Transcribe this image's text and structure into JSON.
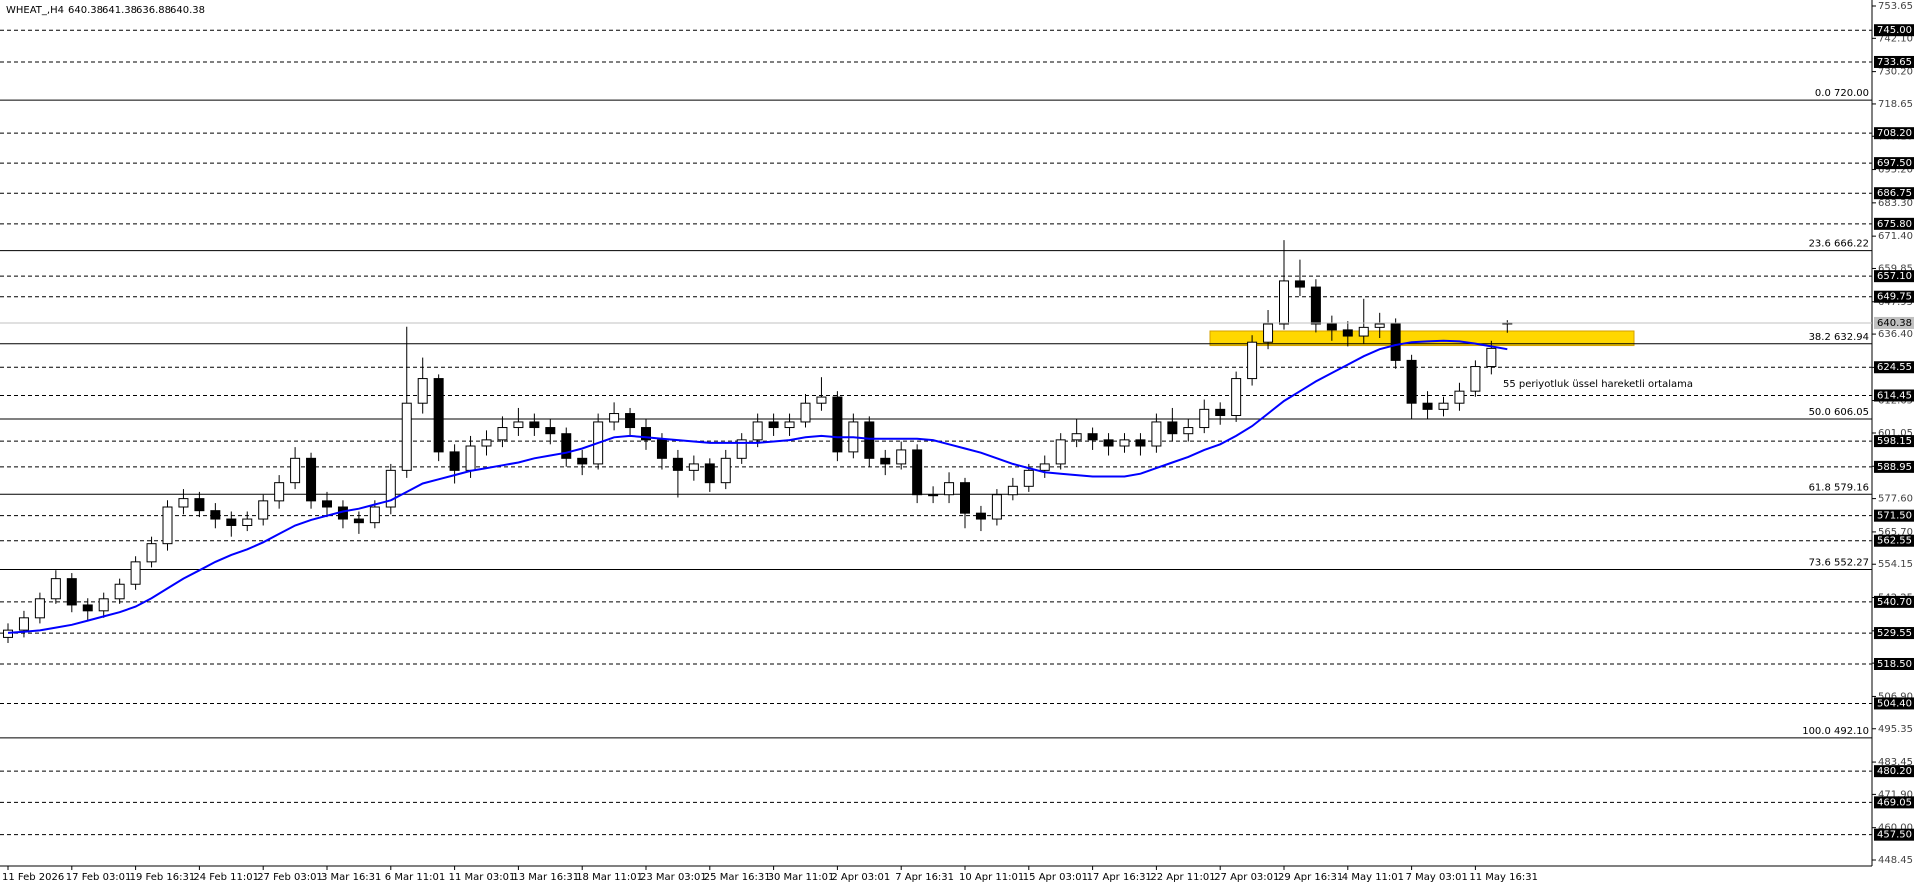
{
  "chart_data": {
    "type": "candlestick",
    "symbol": "WHEAT_,H4",
    "categories": [
      "11 Feb 2026",
      null,
      null,
      null,
      "17 Feb 03:01",
      null,
      null,
      null,
      "19 Feb 16:31",
      null,
      null,
      null,
      "24 Feb 11:01",
      null,
      null,
      null,
      "27 Feb 03:01",
      null,
      null,
      null,
      "3 Mar 16:31",
      null,
      null,
      null,
      "6 Mar 11:01",
      null,
      null,
      null,
      "11 Mar 03:01",
      null,
      null,
      null,
      "13 Mar 16:31",
      null,
      null,
      null,
      "18 Mar 11:01",
      null,
      null,
      null,
      "23 Mar 03:01",
      null,
      null,
      null,
      "25 Mar 16:31",
      null,
      null,
      null,
      "30 Mar 11:01",
      null,
      null,
      null,
      "2 Apr 03:01",
      null,
      null,
      null,
      "7 Apr 16:31",
      null,
      null,
      null,
      "10 Apr 11:01",
      null,
      null,
      null,
      "15 Apr 03:01",
      null,
      null,
      null,
      "17 Apr 16:31",
      null,
      null,
      null,
      "22 Apr 11:01",
      null,
      null,
      null,
      "27 Apr 03:01",
      null,
      null,
      null,
      "29 Apr 16:31",
      null,
      null,
      null,
      "4 May 11:01",
      null,
      null,
      null,
      "7 May 03:01",
      null,
      null,
      null,
      "11 May 16:31",
      null,
      null
    ],
    "open": [
      528,
      530.6,
      535,
      541.8,
      549,
      539.6,
      537.5,
      541.8,
      547,
      555,
      561.5,
      574.6,
      577.6,
      573.3,
      570.3,
      568,
      570.3,
      576.8,
      583.3,
      592,
      576.8,
      574.6,
      570.3,
      569,
      574.6,
      587.7,
      611.7,
      620.5,
      594.3,
      587.7,
      596.4,
      598.6,
      603,
      605,
      603,
      600.8,
      592,
      590,
      605,
      608,
      603,
      598.6,
      592,
      587.7,
      590,
      583.3,
      592,
      598.6,
      605,
      603,
      605,
      611.7,
      613.9,
      594.3,
      605,
      592,
      590,
      595,
      579,
      579,
      583.3,
      572.4,
      570.3,
      579,
      582,
      587.7,
      590,
      598.6,
      600.8,
      598.6,
      596.4,
      598.6,
      596.4,
      605,
      600.8,
      603,
      609.5,
      607.3,
      620.5,
      633.5,
      640,
      655.4,
      653.2,
      640,
      637.9,
      635.7,
      638.8,
      640,
      627,
      611.7,
      609.5,
      611.7,
      616,
      624.8,
      640.38
    ],
    "high": [
      533,
      537.5,
      544,
      552,
      551,
      542,
      544,
      549,
      557,
      564,
      577,
      581,
      580,
      576,
      573,
      573,
      579,
      586,
      596,
      594,
      580,
      577,
      573,
      577,
      590,
      639,
      628,
      622,
      597,
      600,
      602,
      607,
      610,
      608,
      606,
      603,
      595,
      608,
      612,
      610,
      606,
      601,
      595,
      593,
      592,
      595,
      601,
      608,
      608,
      608,
      615,
      621,
      616,
      608,
      607,
      595,
      598,
      597,
      582,
      587,
      585,
      575,
      581,
      585,
      590,
      593,
      601,
      606,
      603,
      601,
      601,
      601,
      608,
      610,
      606,
      613,
      612,
      623,
      636,
      645,
      670,
      663,
      656,
      643,
      641,
      649,
      644,
      642,
      629,
      616,
      614,
      619,
      627,
      634,
      641.38
    ],
    "low": [
      526,
      528,
      533,
      540,
      537,
      534,
      535,
      540,
      545,
      553,
      559,
      572,
      571,
      567,
      564,
      566,
      568,
      574,
      581,
      574,
      571,
      567,
      565,
      567,
      572,
      585,
      608,
      591,
      583,
      585,
      593,
      596,
      600,
      600,
      597,
      589,
      586,
      588,
      602,
      600,
      595,
      588,
      578,
      584,
      580,
      581,
      590,
      596,
      600,
      600,
      603,
      609,
      591,
      592,
      589,
      586,
      588,
      576,
      576,
      576,
      567,
      566,
      568,
      577,
      580,
      585,
      588,
      596,
      595,
      593,
      594,
      593,
      594,
      598,
      598,
      601,
      604,
      605,
      618,
      631,
      638,
      650,
      637,
      634,
      632,
      633,
      635,
      624,
      606,
      606,
      607,
      609,
      614,
      622,
      636.88
    ],
    "close": [
      530.6,
      535,
      541.8,
      549,
      539.6,
      537.5,
      541.8,
      547,
      555,
      561.5,
      574.6,
      577.6,
      573.3,
      570.3,
      568,
      570.3,
      576.8,
      583.3,
      592,
      576.8,
      574.6,
      570.3,
      569,
      574.6,
      587.7,
      611.7,
      620.5,
      594.3,
      587.7,
      596.4,
      598.6,
      603,
      605,
      603,
      600.8,
      592,
      590,
      605,
      608,
      603,
      598.6,
      592,
      587.7,
      590,
      583.3,
      592,
      598.6,
      605,
      603,
      605,
      611.7,
      613.9,
      594.3,
      605,
      592,
      590,
      595,
      579,
      579,
      583.3,
      572.4,
      570.3,
      579,
      582,
      587.7,
      590,
      598.6,
      600.8,
      598.6,
      596.4,
      598.6,
      596.4,
      605,
      600.8,
      603,
      609.5,
      607.3,
      620.5,
      633.5,
      640,
      655.4,
      653.2,
      640,
      637.9,
      635.7,
      638.8,
      640,
      627,
      611.7,
      609.5,
      611.7,
      616,
      624.8,
      631.3,
      640.38
    ],
    "series": [
      {
        "name": "55 periyotluk üssel hareketli ortalama",
        "color": "#0000ff",
        "values": [
          529.6,
          530,
          530.5,
          531.5,
          532.5,
          534,
          535.5,
          537,
          539,
          542,
          545.5,
          549,
          552,
          555,
          557.5,
          559.5,
          562,
          565,
          568,
          570,
          571.5,
          573,
          574,
          575.5,
          577,
          580,
          583,
          584.5,
          586,
          587.5,
          588.5,
          589.5,
          590.5,
          592,
          593,
          594,
          595.5,
          597.5,
          599.5,
          600,
          599.5,
          599,
          598.5,
          598,
          597.5,
          597.5,
          597.5,
          597.5,
          598,
          598.5,
          599.5,
          600,
          599.5,
          599.5,
          599,
          599,
          599,
          599,
          598.5,
          597,
          595.5,
          594,
          592,
          590,
          588.5,
          587,
          586.5,
          586,
          585.5,
          585.5,
          585.5,
          586.5,
          588.5,
          590.5,
          592.5,
          595,
          597,
          600,
          603.5,
          608,
          612.5,
          616,
          619.5,
          622.5,
          625.5,
          628.5,
          631,
          632.5,
          633.5,
          633.8,
          634,
          633.8,
          633,
          632,
          631
        ]
      }
    ],
    "ylim": [
      448.45,
      753.65
    ],
    "yticks": [
      753.65,
      {
        "value": 742.1,
        "label": "742.10"
      },
      {
        "value": 730.2,
        "label": "730.20"
      },
      718.65,
      {
        "value": 707.1,
        "label": "707.10"
      },
      {
        "value": 695.2,
        "label": "695.20"
      },
      {
        "value": 683.3,
        "label": "683.30"
      },
      {
        "value": 671.4,
        "label": "671.40"
      },
      659.85,
      647.95,
      {
        "value": 636.4,
        "label": "636.40"
      },
      {
        "value": 624.5,
        "label": "624.50"
      },
      612.65,
      601.05,
      589.15,
      {
        "value": 577.6,
        "label": "577.60"
      },
      {
        "value": 565.7,
        "label": "565.70"
      },
      554.15,
      542.25,
      530.35,
      {
        "value": 518.8,
        "label": "518.80"
      },
      {
        "value": 506.9,
        "label": "506.90"
      },
      495.35,
      483.45,
      {
        "value": 471.9,
        "label": "471.90"
      },
      {
        "value": 460,
        "label": "460.00"
      },
      448.45
    ],
    "levels": [
      {
        "value": 745,
        "label": "745.00"
      },
      733.65,
      {
        "value": 708.2,
        "label": "708.20"
      },
      {
        "value": 697.5,
        "label": "697.50"
      },
      686.75,
      {
        "value": 675.8,
        "label": "675.80"
      },
      {
        "value": 657.1,
        "label": "657.10"
      },
      649.75,
      624.55,
      614.45,
      598.15,
      588.95,
      {
        "value": 571.5,
        "label": "571.50"
      },
      562.55,
      {
        "value": 540.7,
        "label": "540.70"
      },
      529.55,
      {
        "value": 518.5,
        "label": "518.50"
      },
      {
        "value": 504.4,
        "label": "504.40"
      },
      {
        "value": 480.2,
        "label": "480.20"
      },
      469.05,
      {
        "value": 457.5,
        "label": "457.50"
      }
    ],
    "fib_levels": [
      {
        "value": 720,
        "label": "0.0 720.00"
      },
      {
        "value": 666.22,
        "label": "23.6 666.22"
      },
      {
        "value": 632.94,
        "label": "38.2 632.94"
      },
      {
        "value": 606.05,
        "label": "50.0 606.05"
      },
      {
        "value": 579.16,
        "label": "61.8 579.16"
      },
      {
        "value": 552.27,
        "label": "73.6 552.27"
      },
      {
        "value": 492.1,
        "label": "100.0 492.10"
      }
    ],
    "zone": [
      632.3,
      637.5
    ],
    "zone_color": "#ffd700",
    "up_color": "#ffffff",
    "down_color": "#000000"
  }
}
